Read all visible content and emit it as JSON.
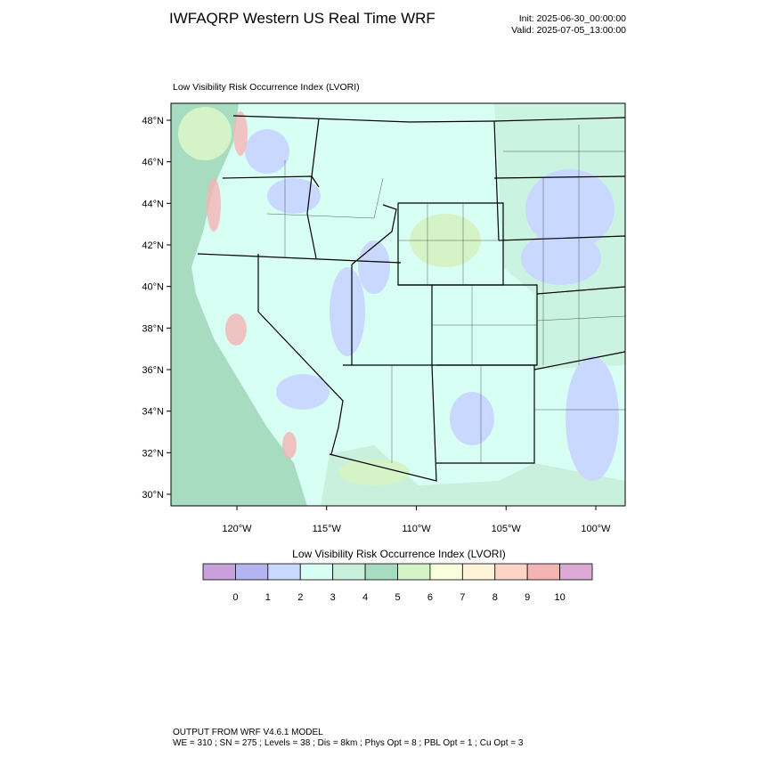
{
  "header": {
    "title": "IWFAQRP Western US Real Time WRF",
    "init": "Init: 2025-06-30_00:00:00",
    "valid": "Valid: 2025-07-05_13:00:00"
  },
  "map": {
    "title": "Low Visibility Risk Occurrence Index   (LVORI)",
    "lat_labels": [
      "48°N",
      "46°N",
      "44°N",
      "42°N",
      "40°N",
      "38°N",
      "36°N",
      "34°N",
      "32°N",
      "30°N"
    ],
    "lon_labels": [
      "120°W",
      "115°W",
      "110°W",
      "105°W",
      "100°W"
    ]
  },
  "colorbar": {
    "title": "Low Visibility Risk Occurrence Index  (LVORI)",
    "labels": [
      0,
      1,
      2,
      3,
      4,
      5,
      6,
      7,
      8,
      9,
      10
    ],
    "colors": [
      "#c8a0dc",
      "#b4b4f0",
      "#c8d8ff",
      "#d8fff4",
      "#c8f0dc",
      "#a8dcc0",
      "#d4f4c8",
      "#f8ffdc",
      "#fff4d8",
      "#ffd4c8",
      "#f4b4b4",
      "#dca8d4"
    ]
  },
  "footer": {
    "line1": "OUTPUT FROM WRF V4.6.1 MODEL",
    "line2": "WE = 310 ; SN = 275 ; Levels = 38 ; Dis = 8km ; Phys Opt = 8 ; PBL Opt = 1 ; Cu Opt = 3"
  }
}
